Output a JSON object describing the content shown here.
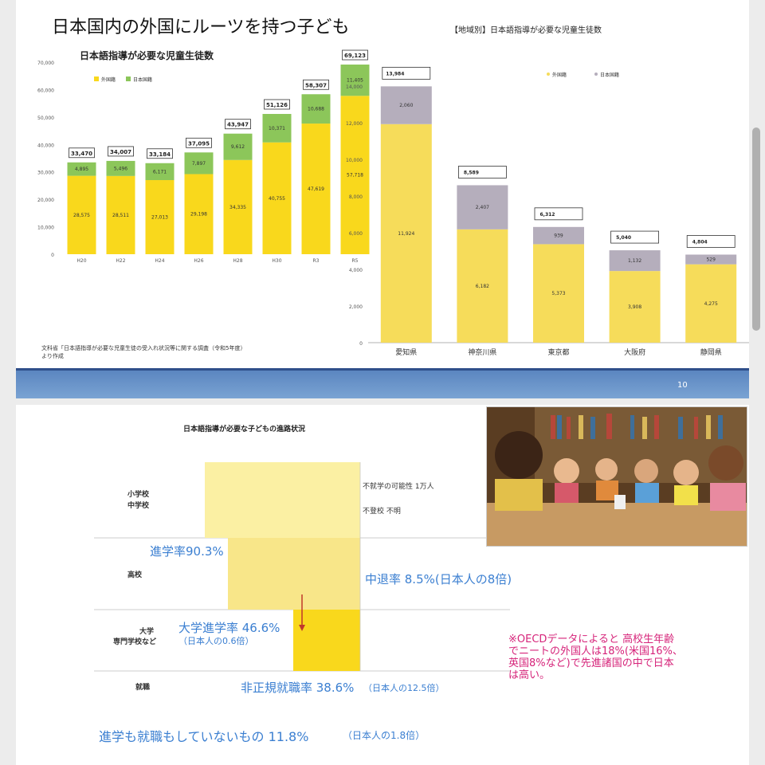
{
  "slide1": {
    "title": "日本国内の外国にルーツを持つ子ども",
    "page_number": "10",
    "source_line1": "文科省「日本語指導が必要な児童生徒の受入れ状況等に関する調査（令和5年度）",
    "source_line2": "より作成"
  },
  "chart_data": [
    {
      "type": "bar",
      "stacked": true,
      "title": "日本語指導が必要な児童生徒数",
      "categories": [
        "H20",
        "H22",
        "H24",
        "H26",
        "H28",
        "H30",
        "R3",
        "R5"
      ],
      "series": [
        {
          "name": "外国籍",
          "color": "#f9d81c",
          "values": [
            28575,
            28511,
            27013,
            29198,
            34335,
            40755,
            47619,
            57718
          ]
        },
        {
          "name": "日本国籍",
          "color": "#8cc65a",
          "values": [
            4895,
            5496,
            6171,
            7897,
            9612,
            10371,
            10688,
            11405
          ]
        }
      ],
      "totals": [
        33470,
        34007,
        33184,
        37095,
        43947,
        51126,
        58307,
        69123
      ],
      "ylim": [
        0,
        70000
      ],
      "yticks": [
        "0",
        "10,000",
        "20,000",
        "30,000",
        "40,000",
        "50,000",
        "60,000",
        "70,000"
      ],
      "legend_position": "top-left"
    },
    {
      "type": "bar",
      "stacked": true,
      "title": "【地域別】日本語指導が必要な児童生徒数",
      "categories": [
        "愛知県",
        "神奈川県",
        "東京都",
        "大阪府",
        "静岡県"
      ],
      "series": [
        {
          "name": "外国籍",
          "color": "#f6dc5a",
          "values": [
            11924,
            6182,
            5373,
            3908,
            4275
          ]
        },
        {
          "name": "日本国籍",
          "color": "#b5aebc",
          "values": [
            2060,
            2407,
            939,
            1132,
            529
          ]
        }
      ],
      "totals": [
        13984,
        8589,
        6312,
        5040,
        4804
      ],
      "ylim": [
        0,
        14000
      ],
      "yticks": [
        "0",
        "2,000",
        "4,000",
        "6,000",
        "8,000",
        "10,000",
        "12,000",
        "14,000"
      ],
      "legend_position": "top-right"
    },
    {
      "type": "bar",
      "title": "日本語指導が必要な子どもの進路状況",
      "categories": [
        "小学校\n中学校",
        "高校",
        "大学\n専門学校など",
        "就職"
      ]
    }
  ],
  "slide2": {
    "rows": [
      {
        "line1": "小学校",
        "line2": "中学校"
      },
      {
        "line1": "高校",
        "line2": ""
      },
      {
        "line1": "大学",
        "line2": "専門学校など"
      },
      {
        "line1": "就職",
        "line2": ""
      }
    ],
    "note_dropout": "不就学の可能性 1万人",
    "note_truancy": "不登校  不明",
    "progress_rate": "進学率90.3%",
    "dropout_rate": "中退率 8.5%(日本人の8倍)",
    "univ_rate": "大学進学率  46.6%",
    "univ_compare": "（日本人の0.6倍）",
    "nonregular": "非正規就職率 38.6%",
    "nonregular_compare": "（日本人の12.5倍）",
    "neither": "進学も就職もしていないもの  11.8%",
    "neither_compare": "（日本人の1.8倍）",
    "oecd_note": [
      "※OECDデータによると  高校生年齢",
      "でニートの外国人は18%(米国16%、",
      "英国8%など)で先進諸国の中で日本",
      "は高い。"
    ]
  }
}
